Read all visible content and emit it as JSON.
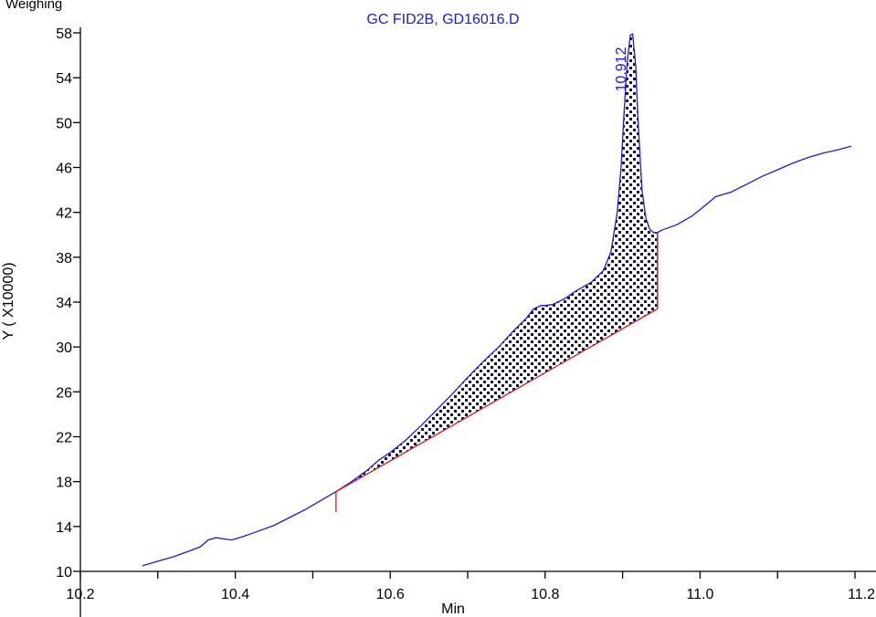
{
  "corner_label": "Weighing",
  "chart_data": {
    "type": "line",
    "title": "GC FID2B, GD16016.D",
    "xlabel": "Min",
    "ylabel": "Y ( X10000)",
    "xlim": [
      10.2,
      11.2
    ],
    "ylim": [
      10,
      58
    ],
    "x_ticks": [
      10.2,
      10.4,
      10.6,
      10.8,
      11.0,
      11.2
    ],
    "x_tick_labels": [
      "10.2",
      "10.4",
      "10.6",
      "10.8",
      "11.0",
      "11.2"
    ],
    "y_ticks": [
      10,
      14,
      18,
      22,
      26,
      30,
      34,
      38,
      42,
      46,
      50,
      54,
      58
    ],
    "y_tick_labels": [
      "10",
      "14",
      "18",
      "22",
      "26",
      "30",
      "34",
      "38",
      "42",
      "46",
      "50",
      "54",
      "58"
    ],
    "grid": false,
    "series": [
      {
        "color": "#1a1adb",
        "x": [
          10.28,
          10.3,
          10.32,
          10.34,
          10.355,
          10.365,
          10.375,
          10.385,
          10.395,
          10.41,
          10.43,
          10.45,
          10.47,
          10.49,
          10.51,
          10.53,
          10.55,
          10.57,
          10.585,
          10.6,
          10.62,
          10.64,
          10.66,
          10.68,
          10.7,
          10.72,
          10.74,
          10.76,
          10.775,
          10.785,
          10.795,
          10.8,
          10.81,
          10.825,
          10.84,
          10.86,
          10.875,
          10.885,
          10.893,
          10.898,
          10.902,
          10.906,
          10.91,
          10.913,
          10.917,
          10.92,
          10.925,
          10.93,
          10.935,
          10.94,
          10.945,
          10.95,
          10.97,
          10.99,
          11.01,
          11.02,
          11.04,
          11.06,
          11.08,
          11.1,
          11.12,
          11.14,
          11.16,
          11.18,
          11.195
        ],
        "y": [
          10.5,
          10.9,
          11.3,
          11.8,
          12.2,
          12.8,
          13.0,
          12.9,
          12.8,
          13.1,
          13.6,
          14.1,
          14.8,
          15.5,
          16.3,
          17.1,
          18.0,
          19.0,
          19.9,
          20.6,
          21.7,
          23.0,
          24.4,
          25.8,
          27.3,
          28.7,
          30.0,
          31.5,
          32.5,
          33.4,
          33.7,
          33.7,
          33.8,
          34.3,
          35.0,
          35.8,
          36.8,
          38.5,
          42.0,
          46.0,
          51.0,
          55.5,
          57.8,
          57.9,
          55.0,
          50.0,
          44.0,
          41.5,
          40.5,
          40.2,
          40.2,
          40.4,
          40.9,
          41.7,
          42.8,
          43.4,
          43.8,
          44.5,
          45.2,
          45.8,
          46.4,
          46.9,
          47.3,
          47.6,
          47.9
        ]
      }
    ],
    "baseline": {
      "color": "#d41a1a",
      "start": [
        10.53,
        17.1
      ],
      "end": [
        10.945,
        33.4
      ],
      "start_tick_bottom": 15.3,
      "end_tick_top": 40.2
    },
    "annotations": [
      {
        "text": "10.912",
        "x": 10.912,
        "y": 57.8,
        "color": "#1a1adb"
      }
    ]
  }
}
